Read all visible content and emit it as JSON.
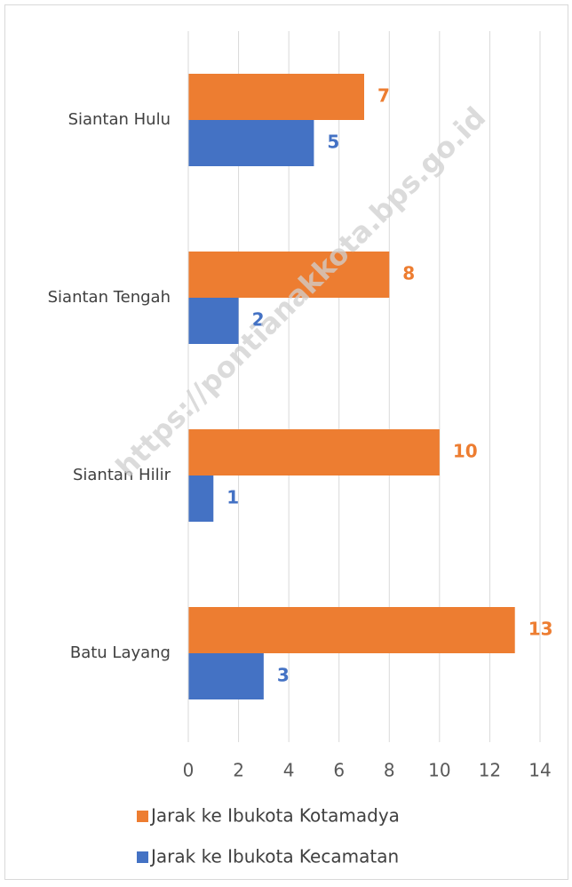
{
  "chart_data": {
    "type": "bar",
    "orientation": "horizontal",
    "categories": [
      "Siantan Hulu",
      "Siantan Tengah",
      "Siantan Hilir",
      "Batu Layang"
    ],
    "series": [
      {
        "name": "Jarak ke Ibukota Kotamadya",
        "color": "#ed7d31",
        "values": [
          7,
          8,
          10,
          13
        ]
      },
      {
        "name": "Jarak ke Ibukota Kecamatan",
        "color": "#4472c4",
        "values": [
          5,
          2,
          1,
          3
        ]
      }
    ],
    "xlim": [
      0,
      14
    ],
    "xticks": [
      0,
      2,
      4,
      6,
      8,
      10,
      12,
      14
    ],
    "grid": true,
    "legend": "bottom",
    "watermark": "https://pontianakkota.bps.go.id"
  }
}
